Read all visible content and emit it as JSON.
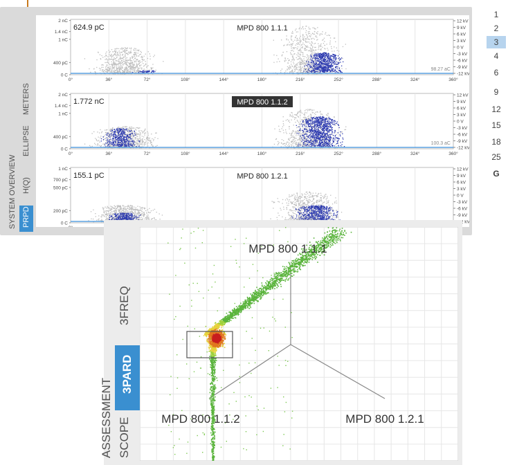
{
  "top_panel": {
    "tabs": [
      {
        "label": "PRPD",
        "active": true
      },
      {
        "label": "H(Q)",
        "active": false
      },
      {
        "label": "ELLIPSE",
        "active": false
      },
      {
        "label": "METERS",
        "active": false
      }
    ],
    "system_overview": "SYSTEM OVERVIEW",
    "x_ticks": [
      "0°",
      "36°",
      "72°",
      "108°",
      "144°",
      "180°",
      "216°",
      "252°",
      "288°",
      "324°",
      "360°"
    ],
    "plots": [
      {
        "channel": "MPD 800 1.1.1",
        "channel_highlighted": false,
        "charge": "624.9 pC",
        "y_ticks": [
          "2 nC",
          "1.4 nC",
          "1 nC",
          "400 pC",
          "0 C"
        ],
        "v_ticks": [
          "12 kV",
          "9 kV",
          "6 kV",
          "3 kV",
          "0 V",
          "-3 kV",
          "-6 kV",
          "-9 kV",
          "-12 kV"
        ],
        "noise": "98.27 aC"
      },
      {
        "channel": "MPD 800 1.1.2",
        "channel_highlighted": true,
        "charge": "1.772 nC",
        "y_ticks": [
          "2 nC",
          "1.4 nC",
          "1 nC",
          "400 pC",
          "0 C"
        ],
        "v_ticks": [
          "12 kV",
          "9 kV",
          "6 kV",
          "3 kV",
          "0 V",
          "-3 kV",
          "-6 kV",
          "-9 kV",
          "-12 kV"
        ],
        "noise": "100.3 aC"
      },
      {
        "channel": "MPD 800 1.2.1",
        "channel_highlighted": false,
        "charge": "155.1 pC",
        "y_ticks": [
          "1 nC",
          "700 pC",
          "500 pC",
          "200 pC",
          "0 C"
        ],
        "v_ticks": [
          "12 kV",
          "9 kV",
          "6 kV",
          "3 kV",
          "0 V",
          "-3 kV",
          "-6 kV",
          "-9 kV",
          "-12 kV"
        ],
        "noise": ""
      }
    ],
    "layer_numbers": [
      {
        "label": "1",
        "selected": false
      },
      {
        "label": "2",
        "selected": false
      },
      {
        "label": "3",
        "selected": true
      },
      {
        "label": "4",
        "selected": false
      },
      {
        "label": "6",
        "selected": false
      },
      {
        "label": "9",
        "selected": false
      },
      {
        "label": "12",
        "selected": false
      },
      {
        "label": "15",
        "selected": false
      },
      {
        "label": "18",
        "selected": false
      },
      {
        "label": "25",
        "selected": false
      },
      {
        "label": "G",
        "selected": false
      }
    ]
  },
  "bottom_panel": {
    "tabs": [
      {
        "label": "3FREQ",
        "active": false
      },
      {
        "label": "3PARD",
        "active": true
      }
    ],
    "side_labels": [
      "ASSESSMENT",
      "SCOPE"
    ],
    "vertex_labels": [
      "MPD 800 1.1.1",
      "MPD 800 1.1.2",
      "MPD 800 1.2.1"
    ]
  },
  "colors": {
    "accent": "#3a8fd0",
    "marker": "#c8781c",
    "prpd_dots": "#2d3bb0",
    "background_dots": "#bdbdbd"
  }
}
